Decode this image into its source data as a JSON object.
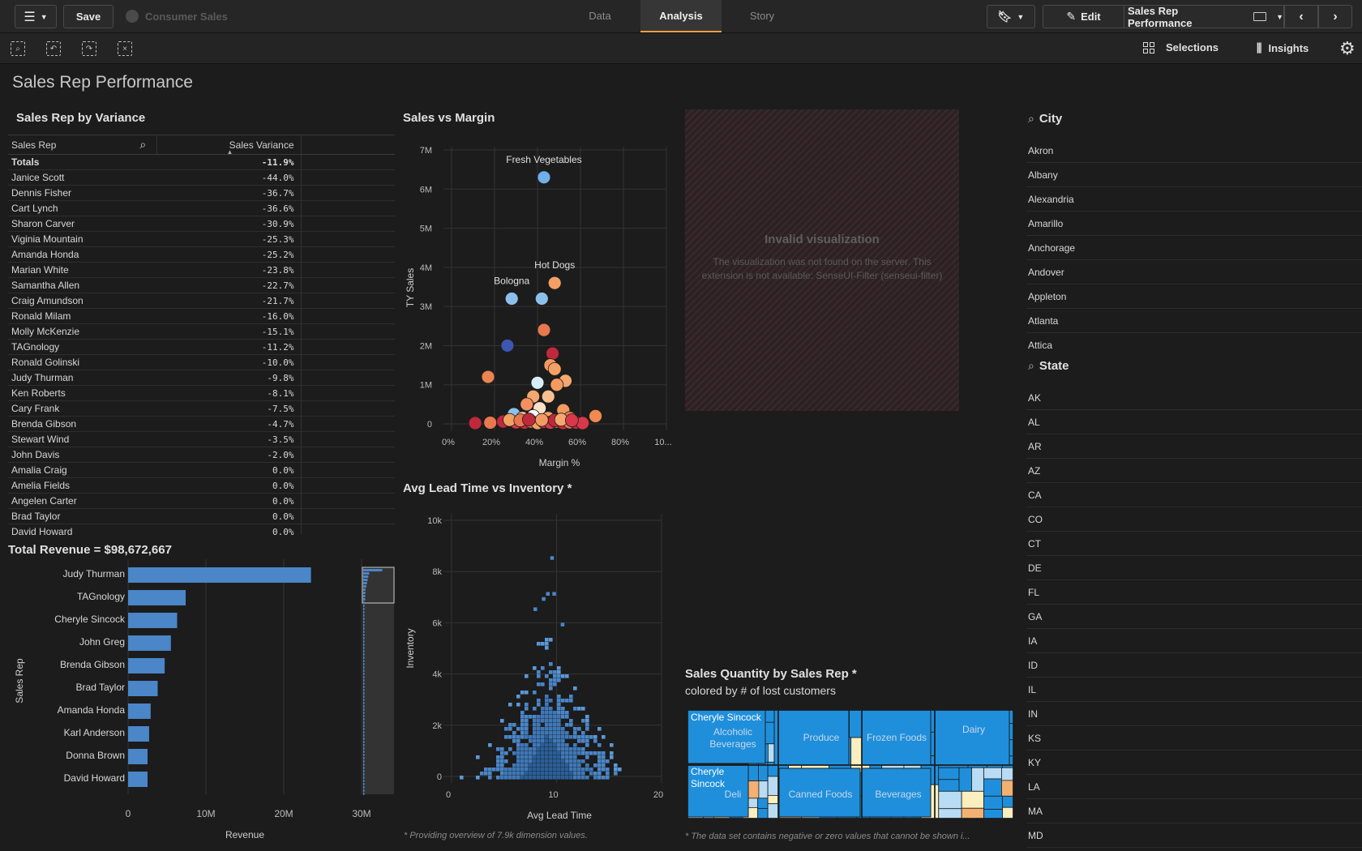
{
  "topbar": {
    "save_label": "Save",
    "app_name": "Consumer Sales",
    "tabs": [
      {
        "label": "Data"
      },
      {
        "label": "Analysis"
      },
      {
        "label": "Story"
      }
    ],
    "edit_label": "Edit",
    "sheet_selector": "Sales Rep Performance"
  },
  "toolbar": {
    "selections_label": "Selections",
    "insights_label": "Insights"
  },
  "sheet": {
    "title": "Sales Rep Performance"
  },
  "variance_table": {
    "title": "Sales Rep by Variance",
    "col_rep": "Sales Rep",
    "col_variance": "Sales Variance",
    "totals_label": "Totals",
    "totals_value": "-11.9%",
    "rows": [
      {
        "rep": "Janice Scott",
        "value": "-44.0%"
      },
      {
        "rep": "Dennis Fisher",
        "value": "-36.7%"
      },
      {
        "rep": "Cart Lynch",
        "value": "-36.6%"
      },
      {
        "rep": "Sharon Carver",
        "value": "-30.9%"
      },
      {
        "rep": "Viginia Mountain",
        "value": "-25.3%"
      },
      {
        "rep": "Amanda Honda",
        "value": "-25.2%"
      },
      {
        "rep": "Marian White",
        "value": "-23.8%"
      },
      {
        "rep": "Samantha Allen",
        "value": "-22.7%"
      },
      {
        "rep": "Craig Amundson",
        "value": "-21.7%"
      },
      {
        "rep": "Ronald Milam",
        "value": "-16.0%"
      },
      {
        "rep": "Molly McKenzie",
        "value": "-15.1%"
      },
      {
        "rep": "TAGnology",
        "value": "-11.2%"
      },
      {
        "rep": "Ronald Golinski",
        "value": "-10.0%"
      },
      {
        "rep": "Judy Thurman",
        "value": "-9.8%"
      },
      {
        "rep": "Ken Roberts",
        "value": "-8.1%"
      },
      {
        "rep": "Cary Frank",
        "value": "-7.5%"
      },
      {
        "rep": "Brenda Gibson",
        "value": "-4.7%"
      },
      {
        "rep": "Stewart Wind",
        "value": "-3.5%"
      },
      {
        "rep": "John Davis",
        "value": "-2.0%"
      },
      {
        "rep": "Amalia Craig",
        "value": "0.0%"
      },
      {
        "rep": "Amelia Fields",
        "value": "0.0%"
      },
      {
        "rep": "Angelen Carter",
        "value": "0.0%"
      },
      {
        "rep": "Brad Taylor",
        "value": "0.0%"
      },
      {
        "rep": "David Howard",
        "value": "0.0%"
      }
    ]
  },
  "invalid_viz": {
    "title": "Invalid visualization",
    "message": "The visualization was not found on the server. This extension is not available: SenseUI-Filter (senseui-filter)"
  },
  "city_filter": {
    "title": "City",
    "items": [
      "Akron",
      "Albany",
      "Alexandria",
      "Amarillo",
      "Anchorage",
      "Andover",
      "Appleton",
      "Atlanta",
      "Attica"
    ]
  },
  "state_filter": {
    "title": "State",
    "items": [
      "AK",
      "AL",
      "AR",
      "AZ",
      "CA",
      "CO",
      "CT",
      "DE",
      "FL",
      "GA",
      "IA",
      "ID",
      "IL",
      "IN",
      "KS",
      "KY",
      "LA",
      "MA",
      "MD"
    ]
  },
  "treemap": {
    "title": "Sales Quantity by Sales Rep *",
    "subtitle": "colored by # of lost customers",
    "footnote": "* The data set contains negative or zero values that cannot be shown i...",
    "labels": [
      "Cheryle Sincock",
      "Alcoholic Beverages",
      "Cheryle Sincock",
      "Deli",
      "Produce",
      "Frozen Foods",
      "Dairy",
      "Canned Foods",
      "Beverages"
    ]
  },
  "scatter_footnote": "* Providing overview of 7.9k dimension values.",
  "colors": {
    "bar_blue": "#4a86c8",
    "treemap_blue": "#1f8fdc",
    "accent_orange": "#f0a040"
  },
  "chart_data": [
    {
      "type": "bar",
      "title": "Total Revenue = $98,672,667",
      "orientation": "horizontal",
      "categories": [
        "Judy Thurman",
        "TAGnology",
        "Cheryle Sincock",
        "John Greg",
        "Brenda Gibson",
        "Brad Taylor",
        "Amanda Honda",
        "Karl Anderson",
        "Donna Brown",
        "David Howard"
      ],
      "values": [
        23500000,
        7400000,
        6300000,
        5500000,
        4700000,
        3800000,
        2900000,
        2700000,
        2500000,
        2500000
      ],
      "xlabel": "Revenue",
      "ylabel": "Sales Rep",
      "xlim": [
        0,
        30000000
      ],
      "xticks": [
        "0",
        "10M",
        "20M",
        "30M"
      ]
    },
    {
      "type": "scatter",
      "title": "Sales vs Margin",
      "xlabel": "Margin %",
      "ylabel": "TY Sales",
      "xlim": [
        0,
        100
      ],
      "ylim": [
        0,
        7000000
      ],
      "xticks": [
        "0%",
        "20%",
        "40%",
        "60%",
        "80%",
        "10..."
      ],
      "yticks": [
        "0",
        "1M",
        "2M",
        "3M",
        "4M",
        "5M",
        "6M",
        "7M"
      ],
      "points": [
        {
          "x": 43,
          "y": 6300000,
          "label": "Fresh Vegetables",
          "color": "#6fb0e8"
        },
        {
          "x": 48,
          "y": 3600000,
          "label": "Hot Dogs",
          "color": "#f4a064"
        },
        {
          "x": 28,
          "y": 3200000,
          "label": "Bologna",
          "color": "#8cc0ec"
        },
        {
          "x": 42,
          "y": 3200000,
          "color": "#8cc0ec"
        },
        {
          "x": 43,
          "y": 2400000,
          "color": "#e8784e"
        },
        {
          "x": 26,
          "y": 2000000,
          "color": "#3d56b0"
        },
        {
          "x": 47,
          "y": 1800000,
          "color": "#c0283c"
        },
        {
          "x": 17,
          "y": 1200000,
          "color": "#ea8450"
        },
        {
          "x": 46,
          "y": 1500000,
          "color": "#f49a60"
        },
        {
          "x": 48,
          "y": 1400000,
          "color": "#f4a064"
        },
        {
          "x": 53,
          "y": 1100000,
          "color": "#f4a870"
        },
        {
          "x": 40,
          "y": 1050000,
          "color": "#d8ecf8"
        },
        {
          "x": 49,
          "y": 1000000,
          "color": "#f49a60"
        },
        {
          "x": 38,
          "y": 700000,
          "color": "#f4a870"
        },
        {
          "x": 45,
          "y": 700000,
          "color": "#f8c090"
        },
        {
          "x": 35,
          "y": 500000,
          "color": "#f49060"
        },
        {
          "x": 41,
          "y": 400000,
          "color": "#fbe0c8"
        },
        {
          "x": 52,
          "y": 350000,
          "color": "#f49a60"
        },
        {
          "x": 29,
          "y": 250000,
          "color": "#8cc0ec"
        },
        {
          "x": 67,
          "y": 200000,
          "color": "#f08a50"
        },
        {
          "x": 38,
          "y": 200000,
          "color": "#f4f4f4"
        },
        {
          "x": 33,
          "y": 150000,
          "color": "#f8c090"
        },
        {
          "x": 45,
          "y": 150000,
          "color": "#f4a064"
        },
        {
          "x": 55,
          "y": 150000,
          "color": "#e8784e"
        },
        {
          "x": 11,
          "y": 20000,
          "color": "#c0283c"
        },
        {
          "x": 18,
          "y": 30000,
          "color": "#e8784e"
        },
        {
          "x": 24,
          "y": 60000,
          "color": "#c0283c"
        },
        {
          "x": 30,
          "y": 40000,
          "color": "#d8384a"
        },
        {
          "x": 34,
          "y": 30000,
          "color": "#c0283c"
        },
        {
          "x": 37,
          "y": 60000,
          "color": "#e8784e"
        },
        {
          "x": 40,
          "y": 20000,
          "color": "#f4a064"
        },
        {
          "x": 43,
          "y": 50000,
          "color": "#c0283c"
        },
        {
          "x": 46,
          "y": 30000,
          "color": "#d8384a"
        },
        {
          "x": 49,
          "y": 60000,
          "color": "#f08a50"
        },
        {
          "x": 52,
          "y": 20000,
          "color": "#c0283c"
        },
        {
          "x": 55,
          "y": 40000,
          "color": "#e8784e"
        },
        {
          "x": 58,
          "y": 30000,
          "color": "#c0283c"
        },
        {
          "x": 61,
          "y": 20000,
          "color": "#d8384a"
        },
        {
          "x": 27,
          "y": 100000,
          "color": "#f4a064"
        },
        {
          "x": 32,
          "y": 90000,
          "color": "#e8784e"
        },
        {
          "x": 36,
          "y": 110000,
          "color": "#c0283c"
        },
        {
          "x": 42,
          "y": 100000,
          "color": "#f49a60"
        },
        {
          "x": 48,
          "y": 90000,
          "color": "#c0283c"
        },
        {
          "x": 51,
          "y": 110000,
          "color": "#f4a870"
        },
        {
          "x": 56,
          "y": 90000,
          "color": "#d8384a"
        }
      ]
    },
    {
      "type": "heatmap",
      "title": "Avg Lead Time vs Inventory *",
      "xlabel": "Avg Lead Time",
      "ylabel": "Inventory",
      "xlim": [
        0,
        20
      ],
      "ylim": [
        0,
        10000
      ],
      "xticks": [
        "0",
        "10",
        "20"
      ],
      "yticks": [
        "0",
        "2k",
        "4k",
        "6k",
        "8k",
        "10k"
      ]
    }
  ]
}
